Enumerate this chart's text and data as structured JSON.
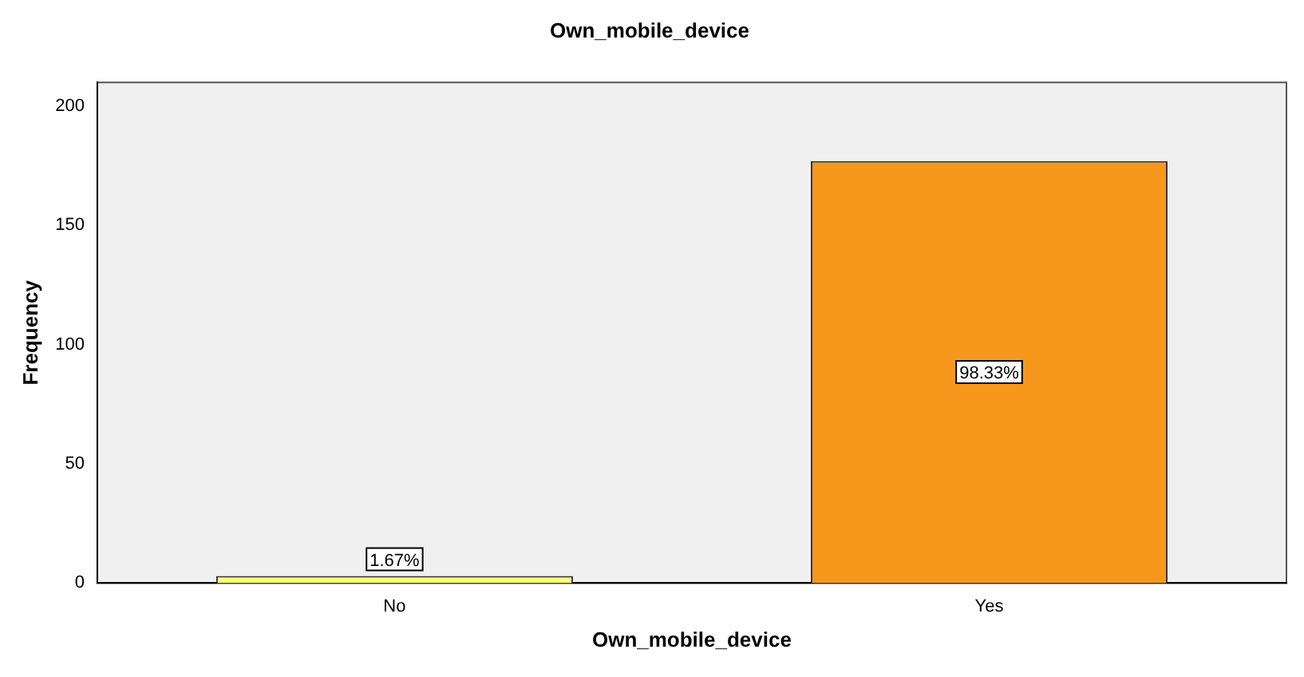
{
  "chart_data": {
    "type": "bar",
    "title": "Own_mobile_device",
    "xlabel": "Own_mobile_device",
    "ylabel": "Frequency",
    "categories": [
      "No",
      "Yes"
    ],
    "values": [
      3,
      177
    ],
    "colors": [
      "#ffff80",
      "#f7981d"
    ],
    "annotations": [
      {
        "text": "1.67%",
        "x": "No",
        "y": 10
      },
      {
        "text": "98.33%",
        "x": "Yes",
        "y": 88.5
      }
    ],
    "ylim": [
      0,
      210
    ],
    "yticks": [
      0,
      50,
      100,
      150,
      200
    ],
    "grid": false,
    "legend": false
  }
}
